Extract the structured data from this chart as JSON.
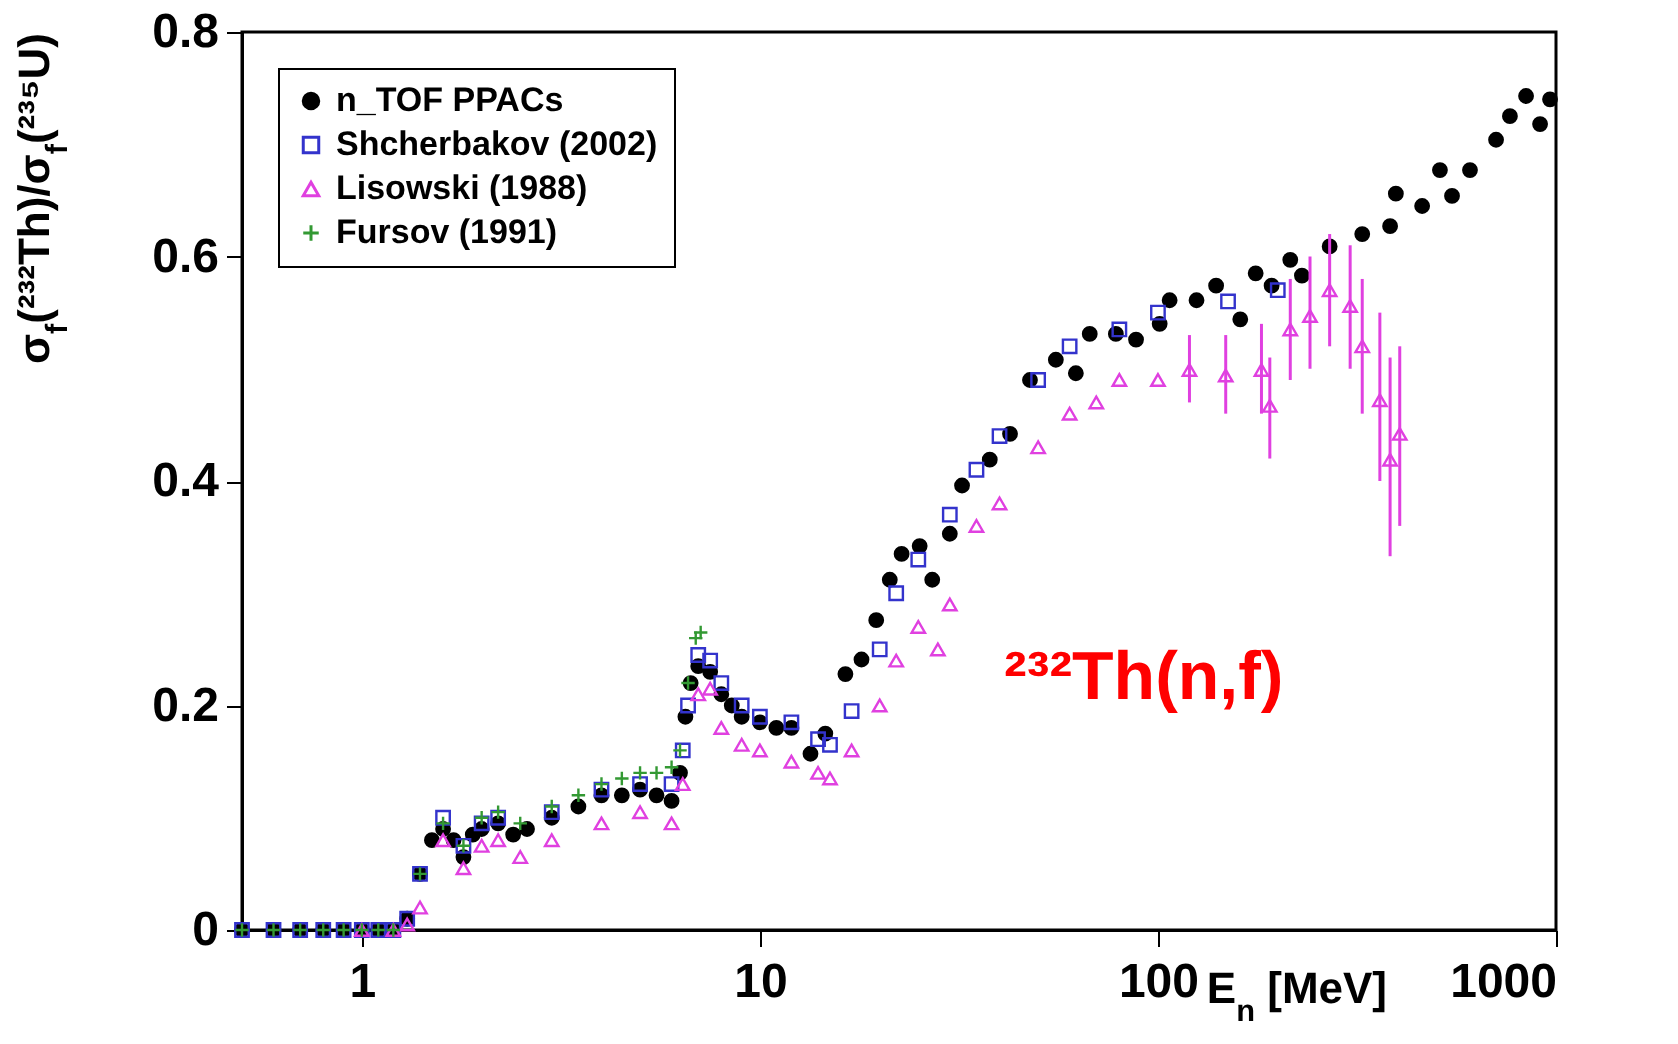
{
  "chart_data": {
    "type": "scatter",
    "xlabel": "E$_{n}$ [MeV]",
    "ylabel": "σ$_{f}$(²³²Th)/σ$_{f}$(²³⁵U)",
    "annotations": [
      "²³²Th(n,f)"
    ],
    "log": "x",
    "xlim": [
      0.5,
      1000
    ],
    "xticks": [
      1,
      10,
      100,
      1000
    ],
    "ylim": [
      0,
      0.8
    ],
    "yticks": [
      0,
      0.2,
      0.4,
      0.6,
      0.8
    ],
    "legend": "top left",
    "series": [
      {
        "name": "n_TOF PPACs",
        "color": "#000000",
        "marker": "circle",
        "x": [
          0.5,
          0.6,
          0.7,
          0.8,
          0.9,
          1.0,
          1.1,
          1.2,
          1.3,
          1.4,
          1.5,
          1.6,
          1.7,
          1.8,
          1.9,
          2.0,
          2.2,
          2.4,
          2.6,
          3,
          3.5,
          4,
          4.5,
          5,
          5.5,
          6,
          6.3,
          6.5,
          6.7,
          7,
          7.5,
          8,
          8.5,
          9,
          10,
          11,
          12,
          13.4,
          14.6,
          16.4,
          18.0,
          19.6,
          21.2,
          22.7,
          25.2,
          27.1,
          30,
          32.2,
          37.8,
          42.5,
          47.7,
          55.4,
          62.2,
          67.4,
          78.4,
          88.1,
          101,
          107,
          125,
          140,
          161,
          176,
          193,
          215,
          230,
          270,
          326,
          383,
          396,
          461,
          511,
          548,
          608,
          707,
          766,
          841,
          912,
          966
        ],
        "values": [
          0,
          0,
          0,
          0,
          0,
          0,
          0,
          0,
          0.01,
          0.05,
          0.08,
          0.09,
          0.08,
          0.065,
          0.085,
          0.09,
          0.095,
          0.085,
          0.09,
          0.1,
          0.11,
          0.12,
          0.12,
          0.125,
          0.12,
          0.115,
          0.14,
          0.19,
          0.22,
          0.235,
          0.23,
          0.21,
          0.2,
          0.19,
          0.185,
          0.18,
          0.18,
          0.157,
          0.175,
          0.228,
          0.241,
          0.276,
          0.312,
          0.335,
          0.342,
          0.312,
          0.353,
          0.396,
          0.419,
          0.442,
          0.49,
          0.508,
          0.496,
          0.531,
          0.531,
          0.526,
          0.54,
          0.561,
          0.561,
          0.574,
          0.544,
          0.585,
          0.574,
          0.597,
          0.583,
          0.609,
          0.62,
          0.627,
          0.656,
          0.645,
          0.677,
          0.654,
          0.677,
          0.704,
          0.725,
          0.743,
          0.718,
          0.74
        ]
      },
      {
        "name": "Shcherbakov (2002)",
        "color": "#3333cc",
        "marker": "square",
        "x": [
          0.5,
          0.6,
          0.7,
          0.8,
          0.9,
          1.0,
          1.1,
          1.2,
          1.3,
          1.4,
          1.6,
          1.8,
          2.0,
          2.2,
          3,
          4,
          5,
          6,
          6.4,
          6.6,
          7,
          7.5,
          8,
          9,
          10,
          12,
          14,
          15,
          17,
          20,
          22,
          25,
          30,
          35,
          40,
          50,
          60,
          80,
          100,
          150,
          200
        ],
        "values": [
          0,
          0,
          0,
          0,
          0,
          0,
          0,
          0,
          0.01,
          0.05,
          0.1,
          0.075,
          0.095,
          0.1,
          0.105,
          0.125,
          0.13,
          0.13,
          0.16,
          0.2,
          0.245,
          0.24,
          0.22,
          0.2,
          0.19,
          0.185,
          0.17,
          0.165,
          0.195,
          0.25,
          0.3,
          0.33,
          0.37,
          0.41,
          0.44,
          0.49,
          0.52,
          0.535,
          0.55,
          0.56,
          0.57
        ]
      },
      {
        "name": "Lisowski (1988)",
        "color": "#e040e0",
        "marker": "triangle",
        "x": [
          1.0,
          1.2,
          1.3,
          1.4,
          1.6,
          1.8,
          2.0,
          2.2,
          2.5,
          3,
          4,
          5,
          6,
          6.4,
          7,
          7.5,
          8,
          9,
          10,
          12,
          14,
          15,
          17,
          20,
          22,
          25,
          28,
          30,
          35,
          40,
          50,
          60,
          70,
          80,
          100,
          120,
          148,
          182,
          191,
          215,
          241,
          270,
          304,
          326,
          361,
          383,
          405
        ],
        "values": [
          0,
          0,
          0.005,
          0.02,
          0.08,
          0.055,
          0.075,
          0.08,
          0.065,
          0.08,
          0.095,
          0.105,
          0.095,
          0.13,
          0.21,
          0.215,
          0.18,
          0.165,
          0.16,
          0.15,
          0.14,
          0.135,
          0.16,
          0.2,
          0.24,
          0.27,
          0.25,
          0.29,
          0.36,
          0.38,
          0.43,
          0.46,
          0.47,
          0.49,
          0.49,
          0.499,
          0.494,
          0.499,
          0.467,
          0.535,
          0.547,
          0.57,
          0.556,
          0.52,
          0.472,
          0.419,
          0.442
        ],
        "errors": [
          null,
          null,
          null,
          null,
          null,
          null,
          null,
          null,
          null,
          null,
          null,
          null,
          null,
          null,
          null,
          null,
          null,
          null,
          null,
          null,
          null,
          null,
          null,
          null,
          null,
          null,
          null,
          null,
          null,
          null,
          null,
          null,
          null,
          null,
          null,
          [
            0.47,
            0.53
          ],
          [
            0.46,
            0.53
          ],
          [
            0.46,
            0.54
          ],
          [
            0.42,
            0.51
          ],
          [
            0.49,
            0.58
          ],
          [
            0.5,
            0.6
          ],
          [
            0.52,
            0.62
          ],
          [
            0.5,
            0.61
          ],
          [
            0.46,
            0.58
          ],
          [
            0.4,
            0.55
          ],
          [
            0.333,
            0.51
          ],
          [
            0.36,
            0.52
          ]
        ]
      },
      {
        "name": "Fursov (1991)",
        "color": "#339933",
        "marker": "cross",
        "x": [
          0.5,
          0.6,
          0.7,
          0.8,
          0.9,
          1.0,
          1.1,
          1.2,
          1.4,
          1.6,
          1.8,
          2.0,
          2.2,
          2.5,
          3,
          3.5,
          4,
          4.5,
          5,
          5.5,
          6,
          6.3,
          6.6,
          6.9,
          7.1
        ],
        "values": [
          0,
          0,
          0,
          0,
          0,
          0,
          0,
          0,
          0.05,
          0.095,
          0.075,
          0.1,
          0.105,
          0.095,
          0.11,
          0.12,
          0.13,
          0.135,
          0.14,
          0.14,
          0.145,
          0.16,
          0.22,
          0.26,
          0.265
        ]
      }
    ]
  }
}
